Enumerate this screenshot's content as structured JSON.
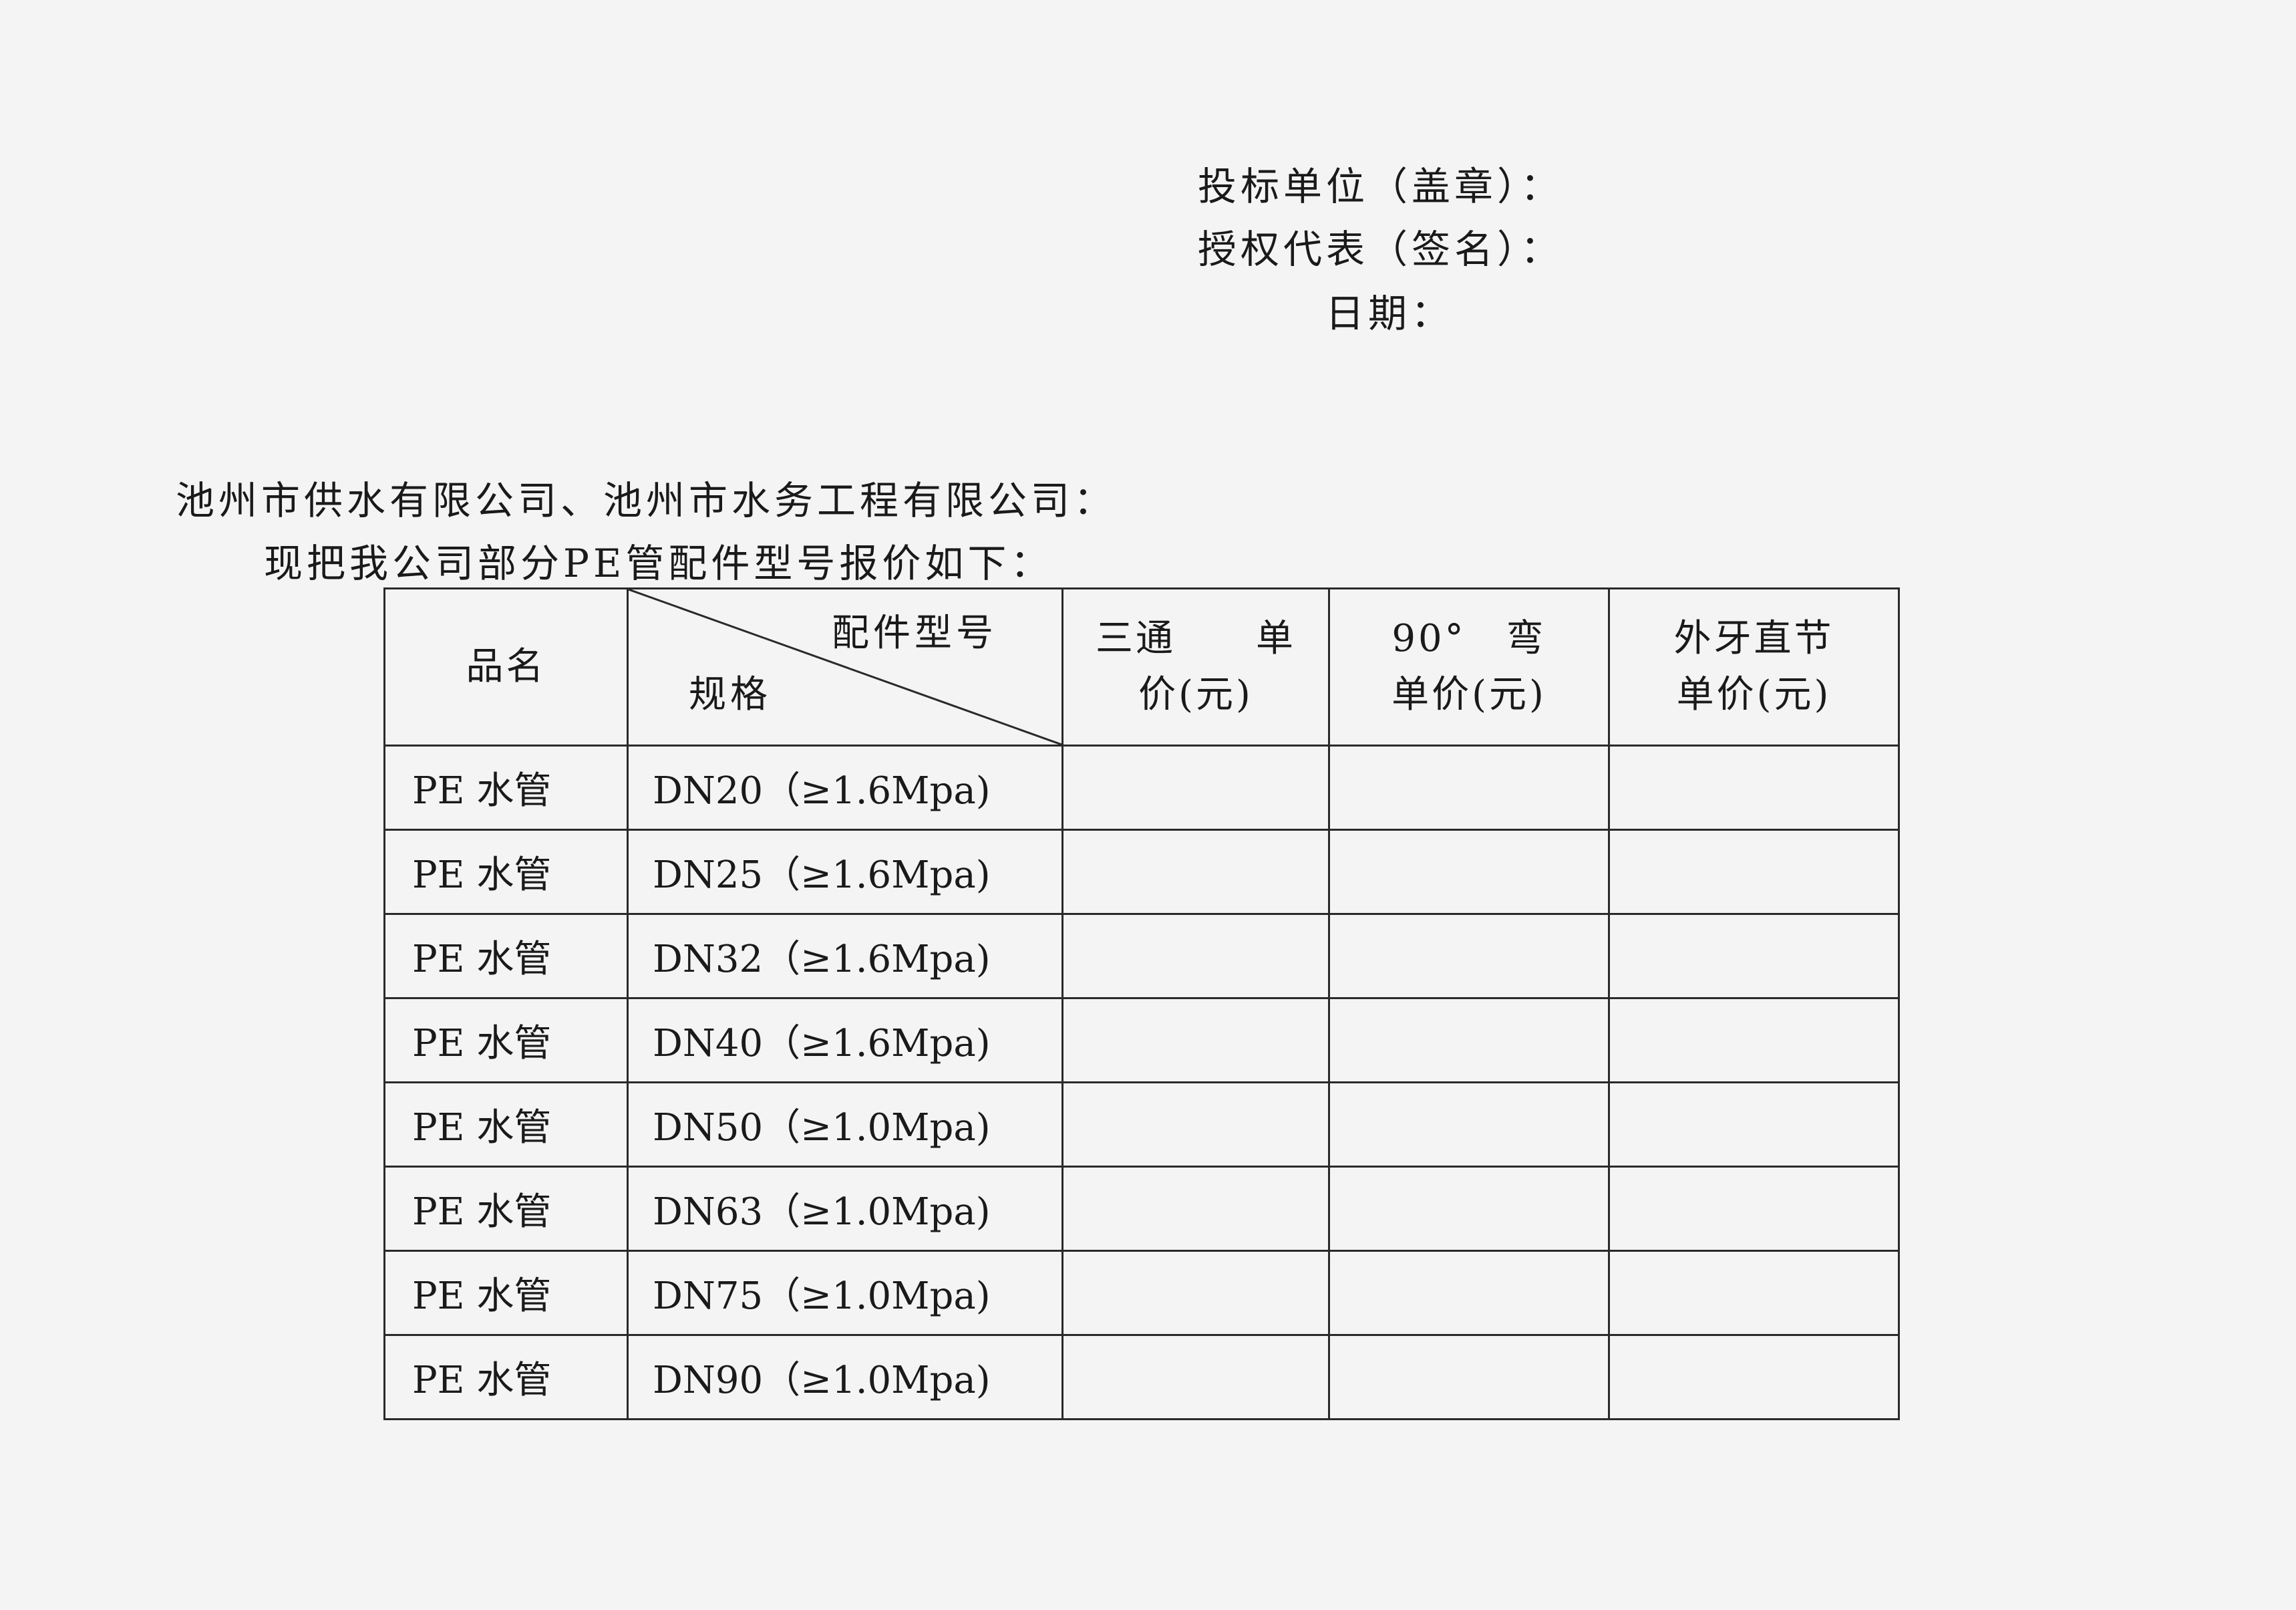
{
  "signature_block": {
    "bidder_seal": "投标单位（盖章）：",
    "authorized_rep": "授权代表（签名）：",
    "date": "日期："
  },
  "letter": {
    "addressee": "池州市供水有限公司、池州市水务工程有限公司：",
    "intro": "现把我公司部分PE管配件型号报价如下："
  },
  "table": {
    "headers": {
      "product_name": "品名",
      "fitting_model": "配件型号",
      "spec": "规格",
      "tee": [
        "三通　　单",
        "价(元)"
      ],
      "elbow": [
        "90°　弯",
        "单价(元)"
      ],
      "male_coupling": [
        "外牙直节",
        "单价(元)"
      ]
    },
    "rows": [
      {
        "name": "PE 水管",
        "spec": "DN20（≥1.6Mpa)",
        "tee": "",
        "elbow": "",
        "male_coupling": ""
      },
      {
        "name": "PE 水管",
        "spec": "DN25（≥1.6Mpa)",
        "tee": "",
        "elbow": "",
        "male_coupling": ""
      },
      {
        "name": "PE 水管",
        "spec": "DN32（≥1.6Mpa)",
        "tee": "",
        "elbow": "",
        "male_coupling": ""
      },
      {
        "name": "PE 水管",
        "spec": "DN40（≥1.6Mpa)",
        "tee": "",
        "elbow": "",
        "male_coupling": ""
      },
      {
        "name": "PE 水管",
        "spec": "DN50（≥1.0Mpa)",
        "tee": "",
        "elbow": "",
        "male_coupling": ""
      },
      {
        "name": "PE 水管",
        "spec": "DN63（≥1.0Mpa)",
        "tee": "",
        "elbow": "",
        "male_coupling": ""
      },
      {
        "name": "PE 水管",
        "spec": "DN75（≥1.0Mpa)",
        "tee": "",
        "elbow": "",
        "male_coupling": ""
      },
      {
        "name": "PE 水管",
        "spec": "DN90（≥1.0Mpa)",
        "tee": "",
        "elbow": "",
        "male_coupling": ""
      }
    ]
  }
}
